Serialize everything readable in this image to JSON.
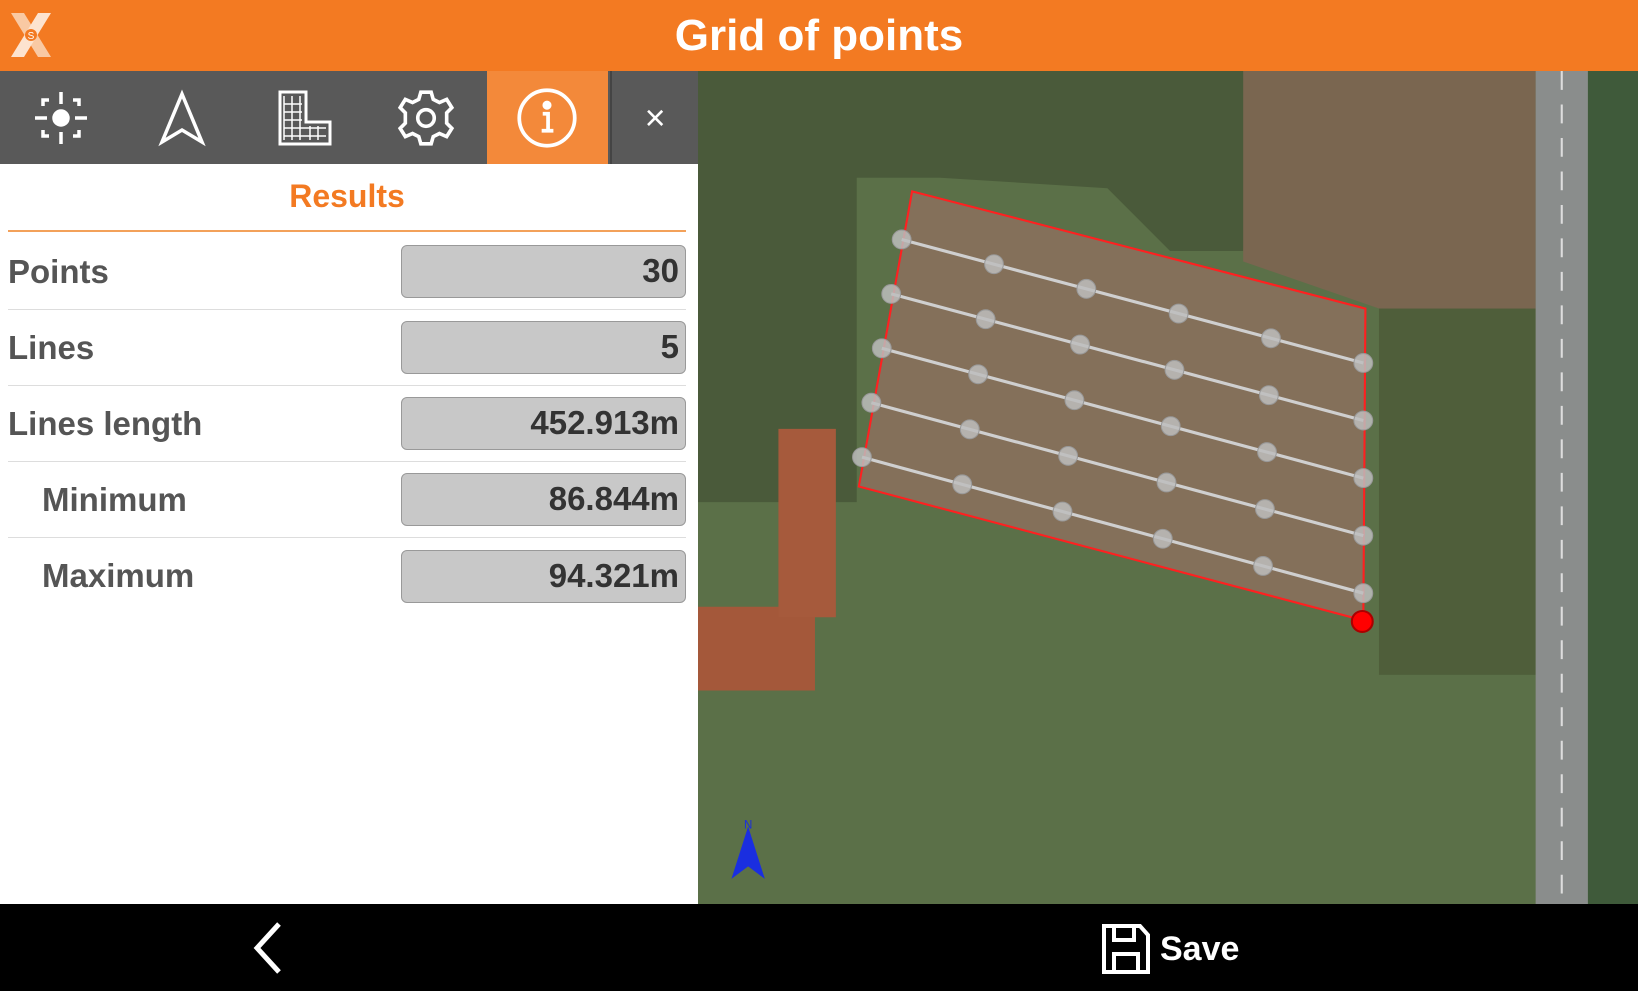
{
  "header": {
    "title": "Grid of points",
    "logo": "xs-logo"
  },
  "tabs": [
    {
      "icon": "target-icon"
    },
    {
      "icon": "navigation-arrow-icon"
    },
    {
      "icon": "grid-building-icon"
    },
    {
      "icon": "gear-icon"
    },
    {
      "icon": "info-icon",
      "active": true
    },
    {
      "icon": "close-icon",
      "label": "×"
    }
  ],
  "results": {
    "title": "Results",
    "rows": [
      {
        "label": "Points",
        "value": "30"
      },
      {
        "label": "Lines",
        "value": "5"
      },
      {
        "label": "Lines length",
        "value": "452.913m"
      },
      {
        "label": "Minimum",
        "value": "86.844m"
      },
      {
        "label": "Maximum",
        "value": "94.321m"
      }
    ]
  },
  "map": {
    "north_label": "N",
    "boundary_color": "#ff2020",
    "point_color": "#bdbdbd",
    "selected_point_color": "#ff0000"
  },
  "bottom": {
    "save_label": "Save"
  },
  "colors": {
    "accent": "#f37a22",
    "tabbar": "#595959"
  }
}
